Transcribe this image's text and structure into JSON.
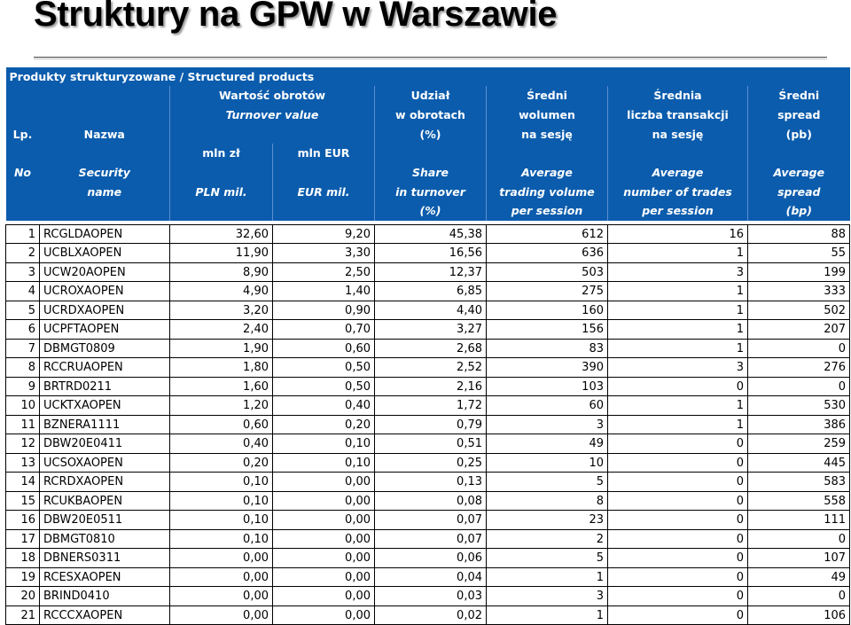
{
  "title": "Struktury na GPW w Warszawie",
  "table": {
    "caption": "Produkty strukturyzowane / Structured products",
    "header": {
      "row1": [
        "Wartość obrotów",
        "Udział",
        "Średni",
        "Średnia",
        "Średni"
      ],
      "row2": [
        "Turnover value",
        "w obrotach",
        "wolumen",
        "liczba transakcji",
        "spread"
      ],
      "row3": [
        "Lp.",
        "Nazwa",
        "(%)",
        "na sesję",
        "na sesję",
        "(pb)"
      ],
      "row4": [
        "mln zł",
        "mln EUR"
      ],
      "row5": [
        "No",
        "Security",
        "Share",
        "Average",
        "Average",
        "Average"
      ],
      "row6": [
        "name",
        "PLN mil.",
        "EUR mil.",
        "in turnover",
        "trading volume",
        "number of trades",
        "spread"
      ],
      "row7": [
        "(%)",
        "per session",
        "per session",
        "(bp)"
      ]
    },
    "rows": [
      [
        "1",
        "RCGLDAOPEN",
        "32,60",
        "9,20",
        "45,38",
        "612",
        "16",
        "88"
      ],
      [
        "2",
        "UCBLXAOPEN",
        "11,90",
        "3,30",
        "16,56",
        "636",
        "1",
        "55"
      ],
      [
        "3",
        "UCW20AOPEN",
        "8,90",
        "2,50",
        "12,37",
        "503",
        "3",
        "199"
      ],
      [
        "4",
        "UCROXAOPEN",
        "4,90",
        "1,40",
        "6,85",
        "275",
        "1",
        "333"
      ],
      [
        "5",
        "UCRDXAOPEN",
        "3,20",
        "0,90",
        "4,40",
        "160",
        "1",
        "502"
      ],
      [
        "6",
        "UCPFTAOPEN",
        "2,40",
        "0,70",
        "3,27",
        "156",
        "1",
        "207"
      ],
      [
        "7",
        "DBMGT0809",
        "1,90",
        "0,60",
        "2,68",
        "83",
        "1",
        "0"
      ],
      [
        "8",
        "RCCRUAOPEN",
        "1,80",
        "0,50",
        "2,52",
        "390",
        "3",
        "276"
      ],
      [
        "9",
        "BRTRD0211",
        "1,60",
        "0,50",
        "2,16",
        "103",
        "0",
        "0"
      ],
      [
        "10",
        "UCKTXAOPEN",
        "1,20",
        "0,40",
        "1,72",
        "60",
        "1",
        "530"
      ],
      [
        "11",
        "BZNERA1111",
        "0,60",
        "0,20",
        "0,79",
        "3",
        "1",
        "386"
      ],
      [
        "12",
        "DBW20E0411",
        "0,40",
        "0,10",
        "0,51",
        "49",
        "0",
        "259"
      ],
      [
        "13",
        "UCSOXAOPEN",
        "0,20",
        "0,10",
        "0,25",
        "10",
        "0",
        "445"
      ],
      [
        "14",
        "RCRDXAOPEN",
        "0,10",
        "0,00",
        "0,13",
        "5",
        "0",
        "583"
      ],
      [
        "15",
        "RCUKBAOPEN",
        "0,10",
        "0,00",
        "0,08",
        "8",
        "0",
        "558"
      ],
      [
        "16",
        "DBW20E0511",
        "0,10",
        "0,00",
        "0,07",
        "23",
        "0",
        "111"
      ],
      [
        "17",
        "DBMGT0810",
        "0,10",
        "0,00",
        "0,07",
        "2",
        "0",
        "0"
      ],
      [
        "18",
        "DBNERS0311",
        "0,00",
        "0,00",
        "0,06",
        "5",
        "0",
        "107"
      ],
      [
        "19",
        "RCESXAOPEN",
        "0,00",
        "0,00",
        "0,04",
        "1",
        "0",
        "49"
      ],
      [
        "20",
        "BRIND0410",
        "0,00",
        "0,00",
        "0,03",
        "3",
        "0",
        "0"
      ],
      [
        "21",
        "RCCCXAOPEN",
        "0,00",
        "0,00",
        "0,02",
        "1",
        "0",
        "106"
      ]
    ]
  },
  "colors": {
    "header_bg": "#0b5cad",
    "header_text": "#ffffff"
  }
}
